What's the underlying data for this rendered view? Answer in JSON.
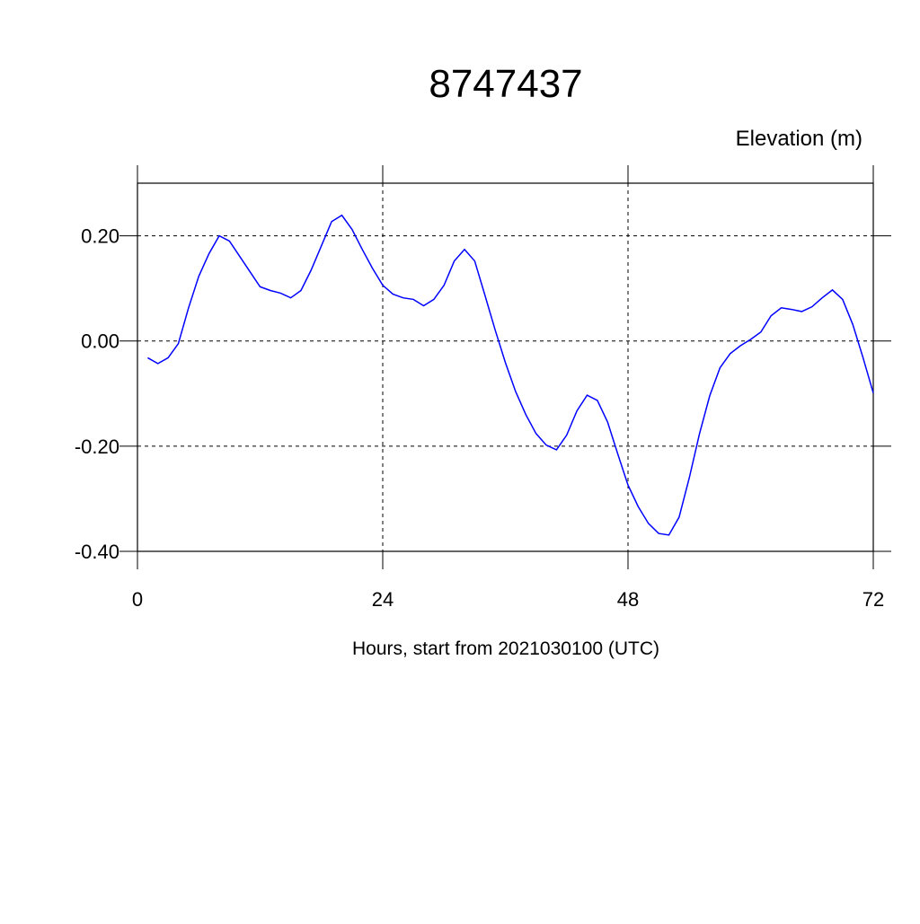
{
  "chart_data": {
    "type": "line",
    "title": "8747437",
    "y_label": "Elevation (m)",
    "x_label": "Hours, start from 2021030100 (UTC)",
    "x": [
      1,
      2,
      3,
      4,
      5,
      6,
      7,
      8,
      9,
      10,
      11,
      12,
      13,
      14,
      15,
      16,
      17,
      18,
      19,
      20,
      21,
      22,
      23,
      24,
      25,
      26,
      27,
      28,
      29,
      30,
      31,
      32,
      33,
      34,
      35,
      36,
      37,
      38,
      39,
      40,
      41,
      42,
      43,
      44,
      45,
      46,
      47,
      48,
      49,
      50,
      51,
      52,
      53,
      54,
      55,
      56,
      57,
      58,
      59,
      60,
      61,
      62,
      63,
      64,
      65,
      66,
      67,
      68,
      69,
      70,
      71,
      72
    ],
    "series": [
      {
        "name": "Elevation",
        "color": "#0000ff",
        "values": [
          -0.032,
          -0.043,
          -0.032,
          -0.005,
          0.063,
          0.123,
          0.166,
          0.2,
          0.19,
          0.161,
          0.132,
          0.103,
          0.096,
          0.091,
          0.082,
          0.096,
          0.135,
          0.181,
          0.227,
          0.239,
          0.212,
          0.174,
          0.138,
          0.106,
          0.089,
          0.082,
          0.079,
          0.067,
          0.079,
          0.106,
          0.152,
          0.174,
          0.152,
          0.087,
          0.021,
          -0.041,
          -0.096,
          -0.14,
          -0.176,
          -0.198,
          -0.207,
          -0.179,
          -0.133,
          -0.103,
          -0.113,
          -0.154,
          -0.215,
          -0.274,
          -0.315,
          -0.347,
          -0.366,
          -0.369,
          -0.335,
          -0.26,
          -0.176,
          -0.104,
          -0.051,
          -0.024,
          -0.009,
          0.003,
          0.017,
          0.048,
          0.063,
          0.06,
          0.056,
          0.065,
          0.082,
          0.097,
          0.079,
          0.031,
          -0.032,
          -0.099
        ]
      }
    ],
    "xlim": [
      0,
      72
    ],
    "xticks": [
      0,
      24,
      48,
      72
    ],
    "ylim": [
      -0.4,
      0.3
    ],
    "yticks": [
      {
        "value": -0.4,
        "label": "-0.40"
      },
      {
        "value": -0.2,
        "label": "-0.20"
      },
      {
        "value": 0,
        "label": "0.00"
      },
      {
        "value": 0.2,
        "label": "0.20"
      }
    ],
    "grid": true
  }
}
